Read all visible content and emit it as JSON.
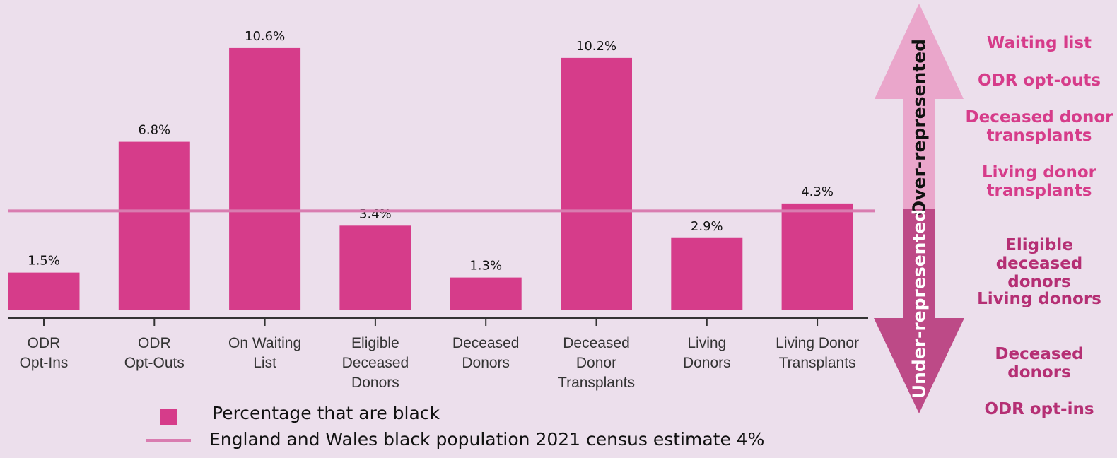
{
  "chart_data": {
    "type": "bar",
    "categories": [
      "ODR\nOpt-Ins",
      "ODR\nOpt-Outs",
      "On Waiting\nList",
      "Eligible\nDeceased\nDonors",
      "Deceased\nDonors",
      "Deceased\nDonor\nTransplants",
      "Living\nDonors",
      "Living Donor\nTransplants"
    ],
    "series": [
      {
        "name": "Percentage that are black",
        "values": [
          1.5,
          6.8,
          10.6,
          3.4,
          1.3,
          10.2,
          2.9,
          4.3
        ],
        "labels": [
          "1.5%",
          "6.8%",
          "10.6%",
          "3.4%",
          "1.3%",
          "10.2%",
          "2.9%",
          "4.3%"
        ]
      }
    ],
    "reference_line": {
      "name": "England and Wales black population 2021 census estimate 4%",
      "value": 4
    },
    "ylim": [
      0,
      11.6
    ],
    "grid": false,
    "legend": "bottom"
  },
  "arrow": {
    "over_label": "Over-represented",
    "under_label": "Under-represented"
  },
  "side_labels": {
    "over": [
      "Waiting list",
      "ODR opt-outs",
      "Deceased donor\ntransplants",
      "Living donor\ntransplants"
    ],
    "under": [
      "Eligible deceased\ndonors",
      "Living donors",
      "Deceased\ndonors",
      "ODR opt-ins"
    ]
  },
  "colors": {
    "bar": "#d63c8a",
    "reference_line": "#d97cb0",
    "arrow_top": "#eaa6cb",
    "arrow_bottom": "#bd4a87",
    "over_text": "#d63c8a",
    "under_text": "#b52f74"
  }
}
